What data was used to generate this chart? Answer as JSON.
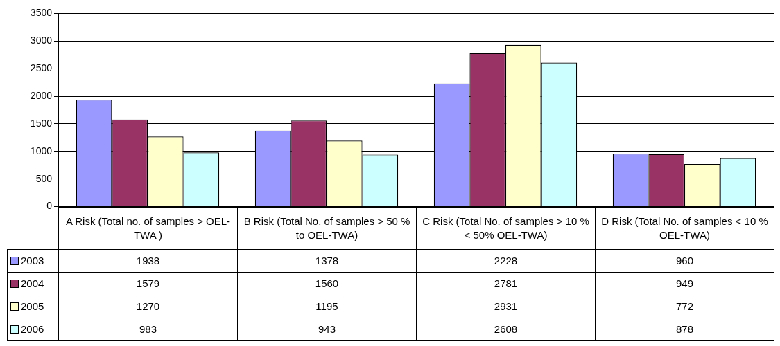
{
  "chart_data": {
    "type": "bar",
    "categories": [
      "A Risk (Total no. of samples > OEL-TWA )",
      "B Risk (Total No. of samples > 50 % to OEL-TWA)",
      "C Risk (Total No. of samples > 10 % < 50% OEL-TWA)",
      "D Risk (Total No. of samples < 10 % OEL-TWA)"
    ],
    "series": [
      {
        "name": "2003",
        "color": "#9999ff",
        "values": [
          1938,
          1378,
          2228,
          960
        ]
      },
      {
        "name": "2004",
        "color": "#993366",
        "values": [
          1579,
          1560,
          2781,
          949
        ]
      },
      {
        "name": "2005",
        "color": "#ffffcc",
        "values": [
          1270,
          1195,
          2931,
          772
        ]
      },
      {
        "name": "2006",
        "color": "#ccffff",
        "values": [
          983,
          943,
          2608,
          878
        ]
      }
    ],
    "ylim": [
      0,
      3500
    ],
    "yticks": [
      0,
      500,
      1000,
      1500,
      2000,
      2500,
      3000,
      3500
    ],
    "grid": "y",
    "legend": "left",
    "data_labels": true
  }
}
